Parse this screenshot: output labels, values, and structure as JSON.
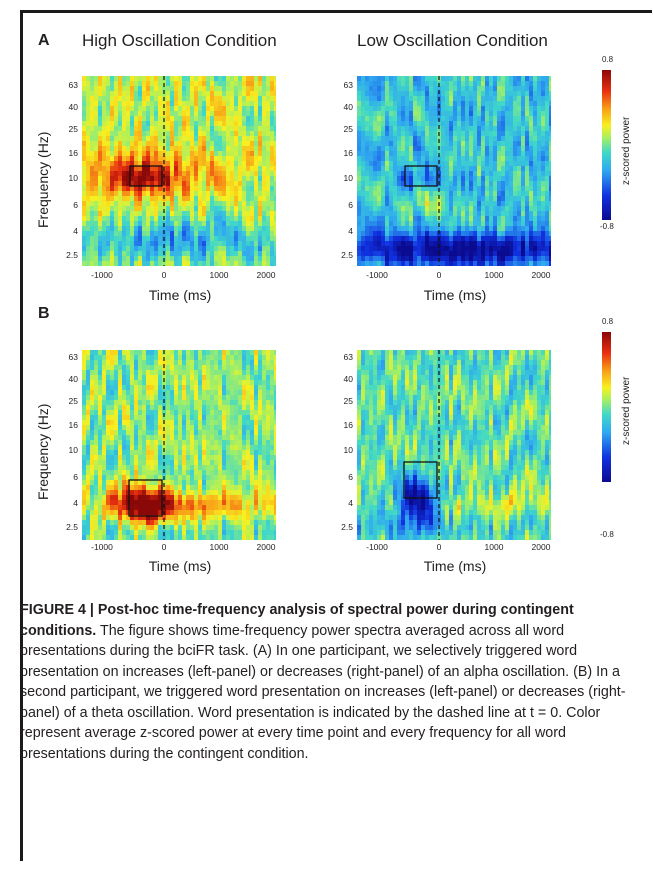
{
  "figure": {
    "panel_labels": [
      "A",
      "B"
    ],
    "condition_titles": [
      "High Oscillation Condition",
      "Low Oscillation Condition"
    ],
    "y_axis_label": "Frequency (Hz)",
    "x_axis_label": "Time (ms)",
    "y_ticks": [
      "63",
      "40",
      "25",
      "16",
      "10",
      "6",
      "4",
      "2.5"
    ],
    "x_ticks": [
      "-1000",
      "0",
      "1000",
      "2000"
    ],
    "colorbar_label": "z-scored power",
    "colorbar_max": "0.8",
    "colorbar_min": "-0.8"
  },
  "caption": {
    "title": "FIGURE 4 | Post-hoc time-frequency analysis of spectral power during contingent conditions.",
    "body": "The figure shows time-frequency power spectra averaged across all word presentations during the bciFR task. (A) In one participant, we selectively triggered word presentation on increases (left-panel) or decreases (right-panel) of an alpha oscillation. (B) In a second participant, we triggered word presentation on increases (left-panel) or decreases (right-panel) of a theta oscillation. Word presentation is indicated by the dashed line at t = 0. Color represent average z-scored power at every time point and every frequency for all word presentations during the contingent condition."
  },
  "colors": {
    "max": "#8a0808",
    "high": "#e83010",
    "mid_high": "#f8f020",
    "mid": "#40d8c8",
    "low": "#30a8f0",
    "min": "#0b0b8f"
  }
}
